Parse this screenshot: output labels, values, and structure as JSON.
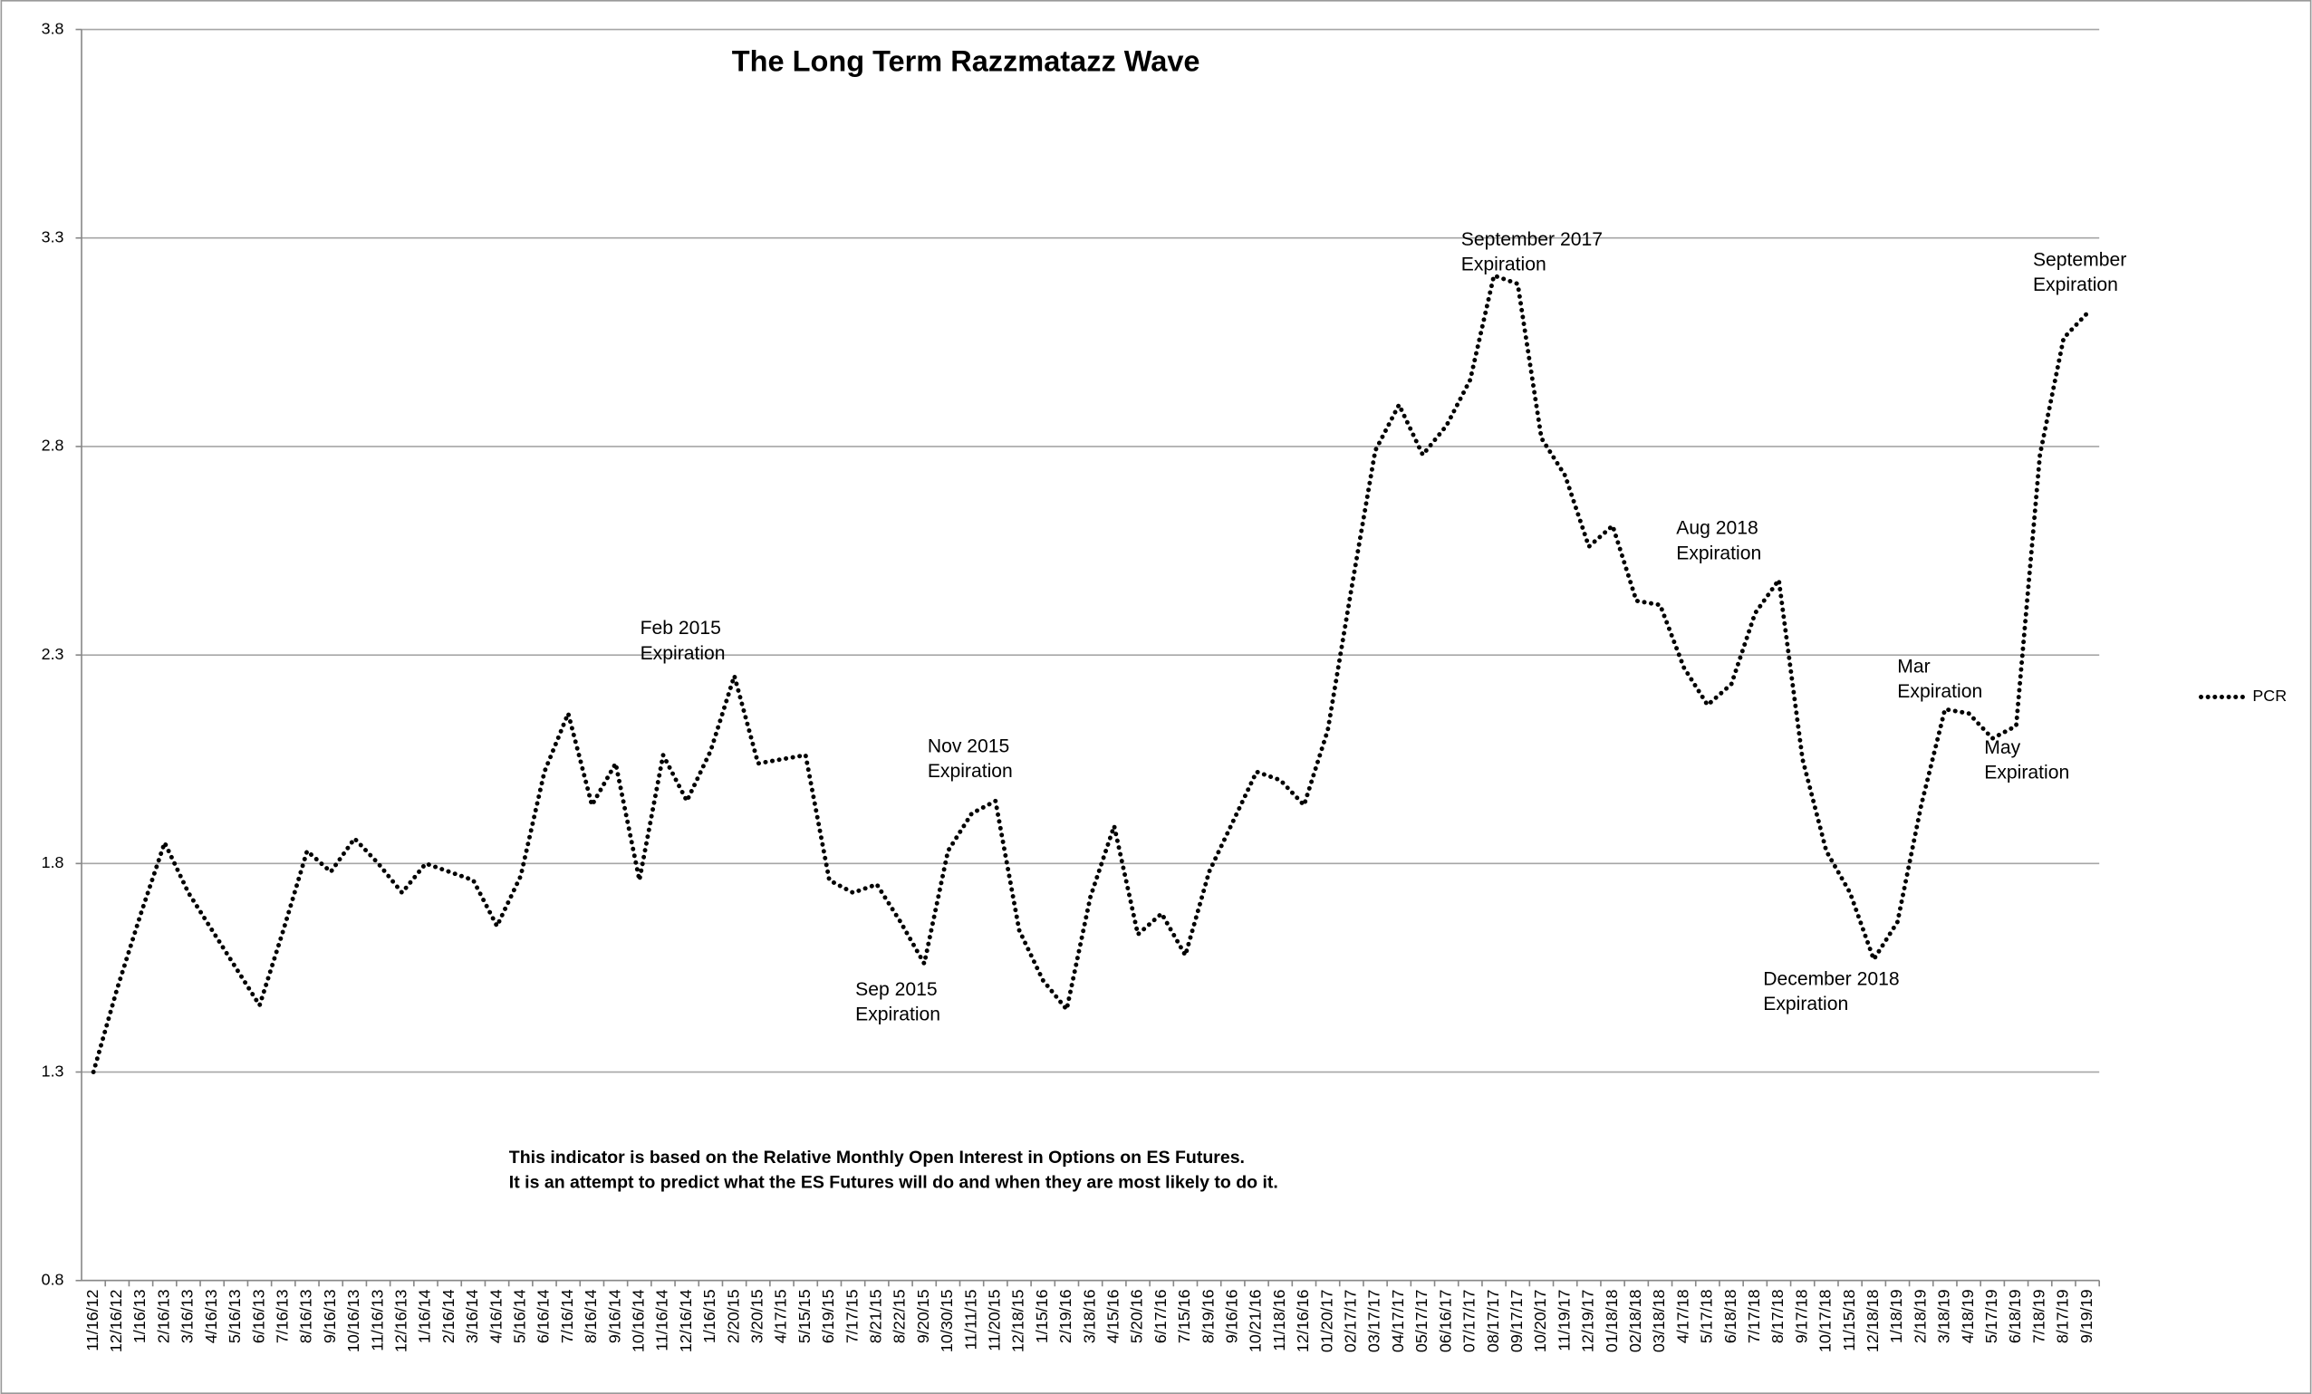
{
  "chart_data": {
    "type": "line",
    "title": "The Long Term Razzmatazz Wave",
    "categories": [
      "11/16/12",
      "12/16/12",
      "1/16/13",
      "2/16/13",
      "3/16/13",
      "4/16/13",
      "5/16/13",
      "6/16/13",
      "7/16/13",
      "8/16/13",
      "9/16/13",
      "10/16/13",
      "11/16/13",
      "12/16/13",
      "1/16/14",
      "2/16/14",
      "3/16/14",
      "4/16/14",
      "5/16/14",
      "6/16/14",
      "7/16/14",
      "8/16/14",
      "9/16/14",
      "10/16/14",
      "11/16/14",
      "12/16/14",
      "1/16/15",
      "2/20/15",
      "3/20/15",
      "4/17/15",
      "5/15/15",
      "6/19/15",
      "7/17/15",
      "8/21/15",
      "8/22/15",
      "9/20/15",
      "10/30/15",
      "11/11/15",
      "11/20/15",
      "12/18/15",
      "1/15/16",
      "2/19/16",
      "3/18/16",
      "4/15/16",
      "5/20/16",
      "6/17/16",
      "7/15/16",
      "8/19/16",
      "9/16/16",
      "10/21/16",
      "11/18/16",
      "12/16/16",
      "01/20/17",
      "02/17/17",
      "03/17/17",
      "04/17/17",
      "05/17/17",
      "06/16/17",
      "07/17/17",
      "08/17/17",
      "09/17/17",
      "10/20/17",
      "11/19/17",
      "12/19/17",
      "01/18/18",
      "02/18/18",
      "03/18/18",
      "4/17/18",
      "5/17/18",
      "6/18/18",
      "7/17/18",
      "8/17/18",
      "9/17/18",
      "10/17/18",
      "11/15/18",
      "12/18/18",
      "1/18/19",
      "2/18/19",
      "3/18/19",
      "4/18/19",
      "5/17/19",
      "6/18/19",
      "7/18/19",
      "8/17/19",
      "9/19/19"
    ],
    "series": [
      {
        "name": "PCR",
        "color": "#000000",
        "values": [
          1.3,
          1.5,
          1.68,
          1.85,
          1.73,
          1.64,
          1.55,
          1.46,
          1.64,
          1.83,
          1.78,
          1.86,
          1.8,
          1.73,
          1.8,
          1.78,
          1.76,
          1.65,
          1.77,
          2.02,
          2.16,
          1.94,
          2.04,
          1.76,
          2.06,
          1.95,
          2.07,
          2.25,
          2.04,
          2.05,
          2.06,
          1.76,
          1.73,
          1.75,
          1.66,
          1.56,
          1.83,
          1.92,
          1.95,
          1.64,
          1.52,
          1.45,
          1.72,
          1.89,
          1.63,
          1.68,
          1.58,
          1.78,
          1.9,
          2.02,
          2.0,
          1.94,
          2.12,
          2.46,
          2.79,
          2.9,
          2.78,
          2.85,
          2.96,
          3.21,
          3.19,
          2.82,
          2.73,
          2.56,
          2.61,
          2.43,
          2.42,
          2.27,
          2.18,
          2.23,
          2.4,
          2.48,
          2.05,
          1.83,
          1.73,
          1.57,
          1.66,
          1.94,
          2.17,
          2.16,
          2.1,
          2.13,
          2.78,
          3.06,
          3.12
        ]
      }
    ],
    "ylim": [
      0.8,
      3.8
    ],
    "yticks": [
      0.8,
      1.3,
      1.8,
      2.3,
      2.8,
      3.3,
      3.8
    ],
    "grid": true,
    "legend": "right",
    "annotations": [
      {
        "lines": [
          "Feb 2015",
          "Expiration"
        ]
      },
      {
        "lines": [
          "Nov 2015",
          "Expiration"
        ]
      },
      {
        "lines": [
          "Sep 2015",
          "Expiration"
        ]
      },
      {
        "lines": [
          "September 2017",
          "Expiration"
        ]
      },
      {
        "lines": [
          "Aug 2018",
          "Expiration"
        ]
      },
      {
        "lines": [
          "December 2018",
          "Expiration"
        ]
      },
      {
        "lines": [
          "Mar",
          "Expiration"
        ]
      },
      {
        "lines": [
          "May",
          "Expiration"
        ]
      },
      {
        "lines": [
          "September",
          "Expiration"
        ]
      }
    ],
    "note": [
      "This indicator is based on the Relative Monthly Open Interest in Options on ES Futures.",
      "It is an attempt to predict what the ES Futures will do and when they are most likely to do it."
    ]
  }
}
